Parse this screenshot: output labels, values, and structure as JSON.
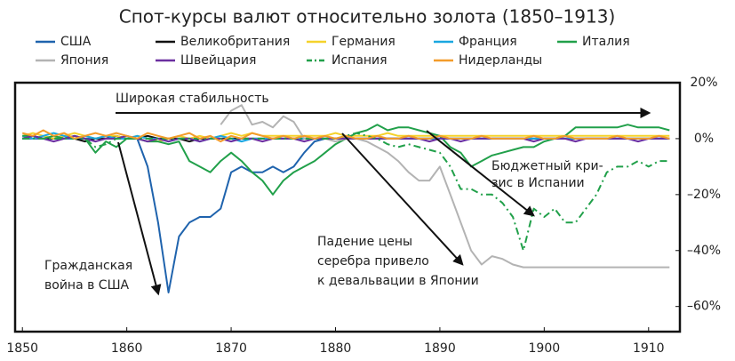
{
  "chart_data": {
    "type": "line",
    "title": "Спот-курсы валют относительно золота (1850–1913)",
    "x": [
      1850,
      1851,
      1852,
      1853,
      1854,
      1855,
      1856,
      1857,
      1858,
      1859,
      1860,
      1861,
      1862,
      1863,
      1864,
      1865,
      1866,
      1867,
      1868,
      1869,
      1870,
      1871,
      1872,
      1873,
      1874,
      1875,
      1876,
      1877,
      1878,
      1879,
      1880,
      1881,
      1882,
      1883,
      1884,
      1885,
      1886,
      1887,
      1888,
      1889,
      1890,
      1891,
      1892,
      1893,
      1894,
      1895,
      1896,
      1897,
      1898,
      1899,
      1900,
      1901,
      1902,
      1903,
      1904,
      1905,
      1906,
      1907,
      1908,
      1909,
      1910,
      1911,
      1912
    ],
    "series": [
      {
        "name": "США",
        "color": "#1f63ad",
        "values": [
          0,
          0,
          0,
          0,
          0,
          0,
          0,
          0,
          0,
          0,
          0,
          0,
          -10,
          -30,
          -55,
          -35,
          -30,
          -28,
          -28,
          -25,
          -12,
          -10,
          -12,
          -12,
          -10,
          -12,
          -10,
          -5,
          -1,
          0,
          0,
          0,
          0,
          0,
          0,
          0,
          0,
          0,
          0,
          0,
          0,
          0,
          0,
          0,
          0,
          0,
          0,
          0,
          0,
          0,
          0,
          0,
          0,
          0,
          0,
          0,
          0,
          0,
          0,
          0,
          0,
          0,
          0
        ]
      },
      {
        "name": "Великобритания",
        "color": "#111111",
        "values": [
          0,
          1,
          0,
          0,
          1,
          0,
          -1,
          0,
          0,
          1,
          0,
          0,
          1,
          0,
          0,
          0,
          -1,
          0,
          0,
          0,
          0,
          0,
          0,
          0,
          0,
          0,
          0,
          0,
          0,
          0,
          0,
          0,
          0,
          0,
          0,
          0,
          0,
          0,
          0,
          0,
          0,
          0,
          0,
          0,
          0,
          0,
          0,
          0,
          0,
          0,
          0,
          0,
          0,
          0,
          0,
          0,
          0,
          0,
          0,
          0,
          0,
          0,
          0
        ]
      },
      {
        "name": "Германия",
        "color": "#f5d22b",
        "values": [
          1,
          2,
          1,
          0,
          1,
          2,
          1,
          0,
          1,
          1,
          0,
          1,
          0,
          -1,
          0,
          1,
          0,
          1,
          0,
          1,
          2,
          1,
          2,
          1,
          1,
          1,
          1,
          1,
          1,
          1,
          2,
          1,
          1,
          1,
          1,
          2,
          1,
          1,
          1,
          1,
          1,
          1,
          1,
          1,
          1,
          1,
          1,
          1,
          1,
          1,
          1,
          1,
          1,
          1,
          1,
          1,
          1,
          1,
          1,
          1,
          1,
          1,
          1
        ]
      },
      {
        "name": "Франция",
        "color": "#1aa7e0",
        "values": [
          1,
          0,
          1,
          2,
          1,
          0,
          1,
          0,
          1,
          0,
          0,
          1,
          0,
          0,
          -1,
          0,
          0,
          -1,
          0,
          1,
          0,
          -1,
          0,
          0,
          0,
          0,
          0,
          0,
          0,
          0,
          0,
          0,
          0,
          0,
          0,
          0,
          0,
          0,
          0,
          0,
          0,
          0,
          0,
          0,
          0,
          0,
          0,
          0,
          0,
          0,
          0,
          0,
          0,
          0,
          0,
          0,
          0,
          0,
          0,
          0,
          0,
          0,
          0
        ]
      },
      {
        "name": "Италия",
        "color": "#21a04a",
        "values": [
          1,
          1,
          0,
          1,
          0,
          1,
          0,
          -5,
          -1,
          -3,
          0,
          0,
          -1,
          -1,
          -2,
          -1,
          -8,
          -10,
          -12,
          -8,
          -5,
          -8,
          -12,
          -15,
          -20,
          -15,
          -12,
          -10,
          -8,
          -5,
          -2,
          0,
          2,
          3,
          5,
          3,
          4,
          4,
          3,
          2,
          1,
          -3,
          -5,
          -10,
          -8,
          -6,
          -5,
          -4,
          -3,
          -3,
          -1,
          0,
          1,
          4,
          4,
          4,
          4,
          4,
          5,
          4,
          4,
          4,
          3
        ]
      },
      {
        "name": "Япония",
        "color": "#b3b3b3",
        "values": [
          null,
          null,
          null,
          null,
          null,
          null,
          null,
          null,
          null,
          null,
          null,
          null,
          null,
          null,
          null,
          null,
          null,
          null,
          null,
          5,
          10,
          12,
          5,
          6,
          4,
          8,
          6,
          0,
          0,
          0,
          -1,
          0,
          0,
          -1,
          -3,
          -5,
          -8,
          -12,
          -15,
          -15,
          -10,
          -20,
          -30,
          -40,
          -45,
          -42,
          -43,
          -45,
          -46,
          -46,
          -46,
          -46,
          -46,
          -46,
          -46,
          -46,
          -46,
          -46,
          -46,
          -46,
          -46,
          -46,
          -46
        ]
      },
      {
        "name": "Швейцария",
        "color": "#6b2fa0",
        "values": [
          0,
          1,
          0,
          -1,
          0,
          1,
          0,
          -1,
          0,
          0,
          1,
          0,
          -1,
          0,
          -1,
          0,
          0,
          -1,
          0,
          0,
          -1,
          0,
          0,
          -1,
          0,
          0,
          0,
          -1,
          0,
          0,
          0,
          0,
          0,
          0,
          0,
          0,
          0,
          0,
          0,
          -1,
          0,
          0,
          -1,
          0,
          0,
          0,
          0,
          0,
          0,
          -1,
          0,
          0,
          0,
          -1,
          0,
          0,
          0,
          0,
          0,
          -1,
          0,
          0,
          0
        ]
      },
      {
        "name": "Испания",
        "color": "#21a04a",
        "dash": "dashdot",
        "values": [
          0,
          0,
          0,
          0,
          0,
          0,
          0,
          -3,
          -2,
          0,
          0,
          0,
          0,
          0,
          0,
          0,
          0,
          0,
          0,
          0,
          0,
          0,
          0,
          0,
          0,
          0,
          0,
          0,
          0,
          0,
          0,
          1,
          2,
          1,
          0,
          -2,
          -3,
          -2,
          -3,
          -4,
          -5,
          -10,
          -18,
          -18,
          -20,
          -20,
          -23,
          -28,
          -40,
          -25,
          -28,
          -25,
          -30,
          -30,
          -25,
          -20,
          -12,
          -10,
          -10,
          -8,
          -10,
          -8,
          -8
        ]
      },
      {
        "name": "Нидерланды",
        "color": "#f39c2b",
        "values": [
          2,
          1,
          3,
          1,
          2,
          0,
          1,
          2,
          1,
          2,
          1,
          0,
          2,
          1,
          0,
          1,
          2,
          0,
          1,
          -1,
          1,
          0,
          2,
          1,
          0,
          1,
          0,
          1,
          0,
          1,
          0,
          1,
          0,
          0,
          1,
          0,
          0,
          1,
          0,
          0,
          1,
          0,
          0,
          0,
          1,
          0,
          0,
          0,
          0,
          1,
          0,
          0,
          1,
          0,
          0,
          0,
          0,
          1,
          0,
          0,
          0,
          1,
          0
        ]
      }
    ],
    "xlim": [
      1849.3,
      1913
    ],
    "xticks": [
      1850,
      1860,
      1870,
      1880,
      1890,
      1900,
      1910
    ],
    "ylim": [
      -69,
      20
    ],
    "yticks": [
      {
        "value": 20,
        "label": "20%"
      },
      {
        "value": 0,
        "label": "0%"
      },
      {
        "value": -20,
        "label": "–20%"
      },
      {
        "value": -40,
        "label": "–40%"
      },
      {
        "value": -60,
        "label": "–60%"
      }
    ],
    "annotations": [
      {
        "lines": [
          "Широкая стабильность"
        ]
      },
      {
        "lines": [
          "Гражданская",
          "война в США"
        ]
      },
      {
        "lines": [
          "Падение цены",
          "серебра привело",
          "к девальвации в Японии"
        ]
      },
      {
        "lines": [
          "Бюджетный кри-",
          "зис в Испании"
        ]
      }
    ]
  }
}
